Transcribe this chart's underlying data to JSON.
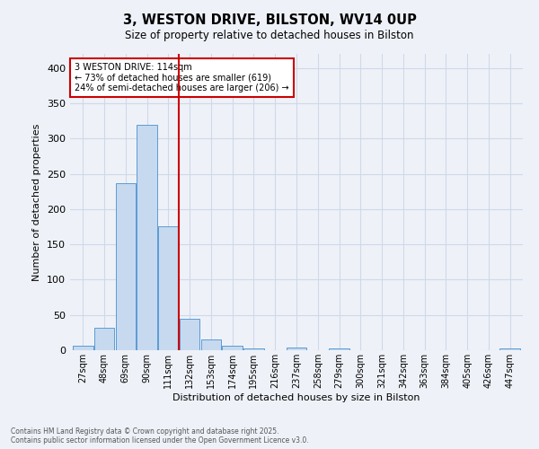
{
  "title": "3, WESTON DRIVE, BILSTON, WV14 0UP",
  "subtitle": "Size of property relative to detached houses in Bilston",
  "xlabel": "Distribution of detached houses by size in Bilston",
  "ylabel": "Number of detached properties",
  "categories": [
    "27sqm",
    "48sqm",
    "69sqm",
    "90sqm",
    "111sqm",
    "132sqm",
    "153sqm",
    "174sqm",
    "195sqm",
    "216sqm",
    "237sqm",
    "258sqm",
    "279sqm",
    "300sqm",
    "321sqm",
    "342sqm",
    "363sqm",
    "384sqm",
    "405sqm",
    "426sqm",
    "447sqm"
  ],
  "values": [
    7,
    32,
    237,
    320,
    176,
    45,
    15,
    6,
    3,
    0,
    4,
    0,
    2,
    0,
    0,
    0,
    0,
    0,
    0,
    0,
    3
  ],
  "bar_color": "#c7d9ef",
  "bar_edge_color": "#5b9bd5",
  "red_line_x": 4.5,
  "annotation_text_line1": "3 WESTON DRIVE: 114sqm",
  "annotation_text_line2": "← 73% of detached houses are smaller (619)",
  "annotation_text_line3": "24% of semi-detached houses are larger (206) →",
  "annotation_box_color": "#ffffff",
  "annotation_box_edge": "#cc0000",
  "red_line_color": "#cc0000",
  "grid_color": "#d0d8e8",
  "background_color": "#eef2f8",
  "footer_line1": "Contains HM Land Registry data © Crown copyright and database right 2025.",
  "footer_line2": "Contains public sector information licensed under the Open Government Licence v3.0.",
  "ylim": [
    0,
    420
  ],
  "yticks": [
    0,
    50,
    100,
    150,
    200,
    250,
    300,
    350,
    400
  ]
}
